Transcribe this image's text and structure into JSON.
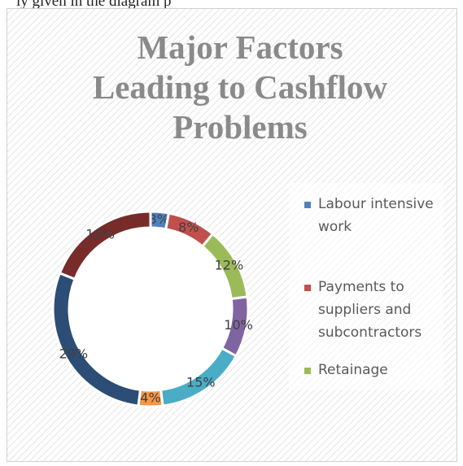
{
  "caption": "ly given in the diagram p",
  "chart_data": {
    "type": "donut",
    "title": "Major Factors Leading to Cashflow Problems",
    "categories": [
      "Labour intensive work",
      "Payments to suppliers and subcontractors",
      "Retainage",
      null,
      null,
      null,
      null,
      null
    ],
    "values": [
      3,
      8,
      12,
      10,
      15,
      4,
      29,
      19
    ],
    "value_labels": [
      "3%",
      "8%",
      "12%",
      "10%",
      "15%",
      "4%",
      "29%",
      "19%"
    ],
    "colors": [
      "#4f81bd",
      "#c0504d",
      "#9bbb59",
      "#8064a2",
      "#4bacc6",
      "#f79646",
      "#2c4d75",
      "#772c2a"
    ],
    "legend": "right"
  }
}
